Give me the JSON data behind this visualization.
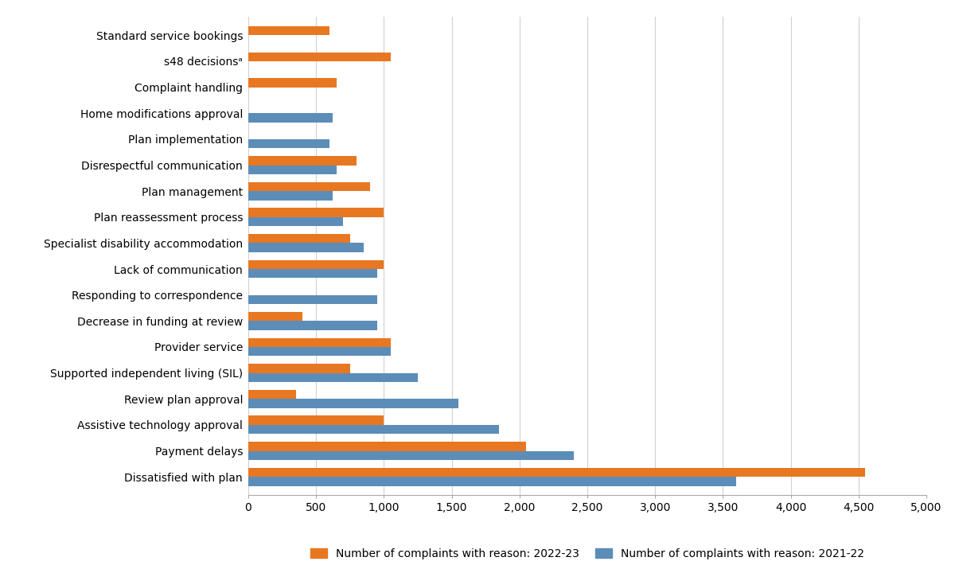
{
  "categories": [
    "Dissatisfied with plan",
    "Payment delays",
    "Assistive technology approval",
    "Review plan approval",
    "Supported independent living (SIL)",
    "Provider service",
    "Decrease in funding at review",
    "Responding to correspondence",
    "Lack of communication",
    "Specialist disability accommodation",
    "Plan reassessment process",
    "Plan management",
    "Disrespectful communication",
    "Plan implementation",
    "Home modifications approval",
    "Complaint handling",
    "s48 decisionsᵃ",
    "Standard service bookings"
  ],
  "values_2022_23": [
    4550,
    2050,
    1000,
    350,
    750,
    1050,
    400,
    0,
    1000,
    750,
    1000,
    900,
    800,
    0,
    0,
    650,
    1050,
    600
  ],
  "values_2021_22": [
    3600,
    2400,
    1850,
    1550,
    1250,
    1050,
    950,
    950,
    950,
    850,
    700,
    620,
    650,
    600,
    620,
    0,
    0,
    0
  ],
  "color_2022_23": "#E87722",
  "color_2021_22": "#5B8DB8",
  "xlim": [
    0,
    5000
  ],
  "xticks": [
    0,
    500,
    1000,
    1500,
    2000,
    2500,
    3000,
    3500,
    4000,
    4500,
    5000
  ],
  "legend_label_2022_23": "Number of complaints with reason: 2022-23",
  "legend_label_2021_22": "Number of complaints with reason: 2021-22",
  "background_color": "#FFFFFF",
  "grid_color": "#D0D0D0"
}
